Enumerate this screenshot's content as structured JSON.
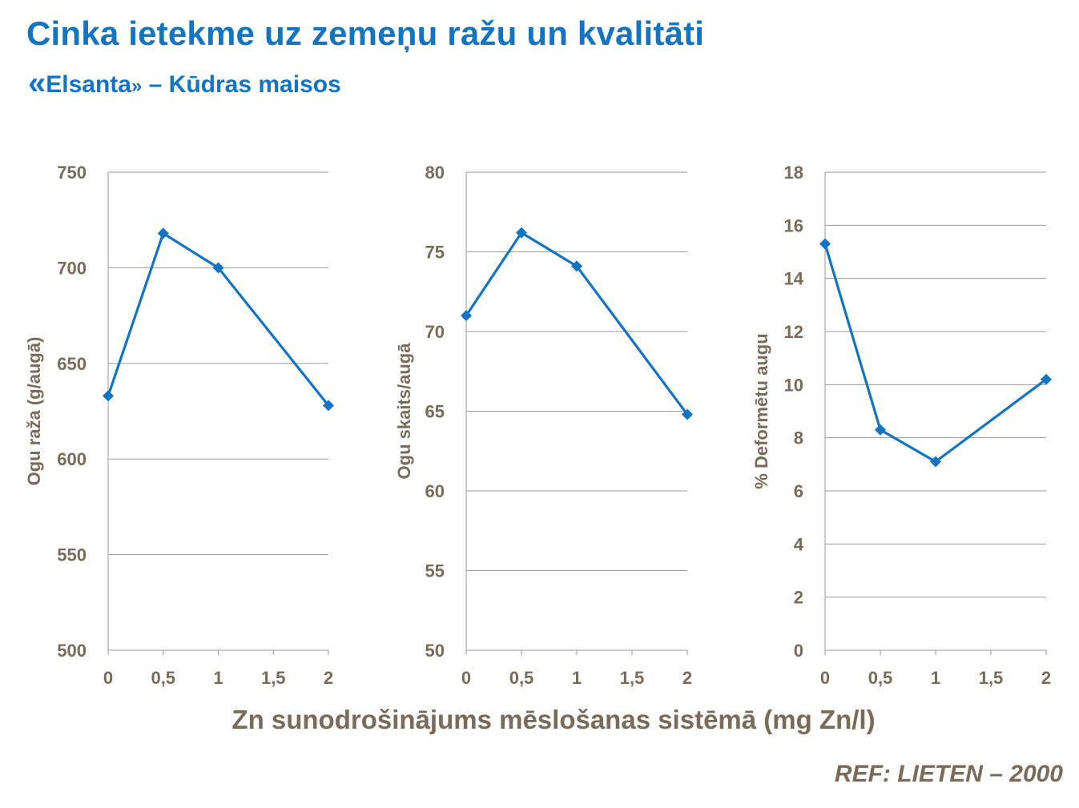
{
  "header": {
    "title": "Cinka ietekme uz zemeņu ražu un kvalitāti",
    "sub_open_quote": "«",
    "sub_variety": "Elsanta",
    "sub_close_quote": "»",
    "sub_rest": " – Kūdras maisos"
  },
  "footer": {
    "x_axis_label": "Zn sunodrošinājums mēslošanas sistēmā (mg Zn/l)",
    "reference": "REF:  LIETEN – 2000"
  },
  "colors": {
    "line": "#1274c2",
    "text": "#7a6a58",
    "grid": "#9a9a9a"
  },
  "chart_data": [
    {
      "type": "line",
      "title": "",
      "xlabel": "",
      "ylabel": "Ogu raža (g/augā)",
      "x": [
        0,
        0.5,
        1,
        2
      ],
      "values": [
        633,
        718,
        700,
        628
      ],
      "xticks": [
        0,
        0.5,
        1,
        1.5,
        2
      ],
      "xtick_labels": [
        "0",
        "0,5",
        "1",
        "1,5",
        "2"
      ],
      "xlim": [
        0,
        2
      ],
      "yticks": [
        500,
        550,
        600,
        650,
        700,
        750
      ],
      "ytick_labels": [
        "500",
        "550",
        "600",
        "650",
        "700",
        "750"
      ],
      "ylim": [
        500,
        750
      ],
      "grid": "horizontal",
      "marker": "diamond"
    },
    {
      "type": "line",
      "title": "",
      "xlabel": "",
      "ylabel": "Ogu skaits/augā",
      "x": [
        0,
        0.5,
        1,
        2
      ],
      "values": [
        71,
        76.2,
        74.1,
        64.8
      ],
      "xticks": [
        0,
        0.5,
        1,
        1.5,
        2
      ],
      "xtick_labels": [
        "0",
        "0,5",
        "1",
        "1,5",
        "2"
      ],
      "xlim": [
        0,
        2
      ],
      "yticks": [
        50,
        55,
        60,
        65,
        70,
        75,
        80
      ],
      "ytick_labels": [
        "50",
        "55",
        "60",
        "65",
        "70",
        "75",
        "80"
      ],
      "ylim": [
        50,
        80
      ],
      "grid": "horizontal",
      "marker": "diamond"
    },
    {
      "type": "line",
      "title": "",
      "xlabel": "",
      "ylabel": "% Deformētu augu",
      "x": [
        0,
        0.5,
        1,
        2
      ],
      "values": [
        15.3,
        8.3,
        7.1,
        10.2
      ],
      "xticks": [
        0,
        0.5,
        1,
        1.5,
        2
      ],
      "xtick_labels": [
        "0",
        "0,5",
        "1",
        "1,5",
        "2"
      ],
      "xlim": [
        0,
        2
      ],
      "yticks": [
        0,
        2,
        4,
        6,
        8,
        10,
        12,
        14,
        16,
        18
      ],
      "ytick_labels": [
        "0",
        "2",
        "4",
        "6",
        "8",
        "10",
        "12",
        "14",
        "16",
        "18"
      ],
      "ylim": [
        0,
        18
      ],
      "grid": "horizontal",
      "marker": "diamond"
    }
  ]
}
